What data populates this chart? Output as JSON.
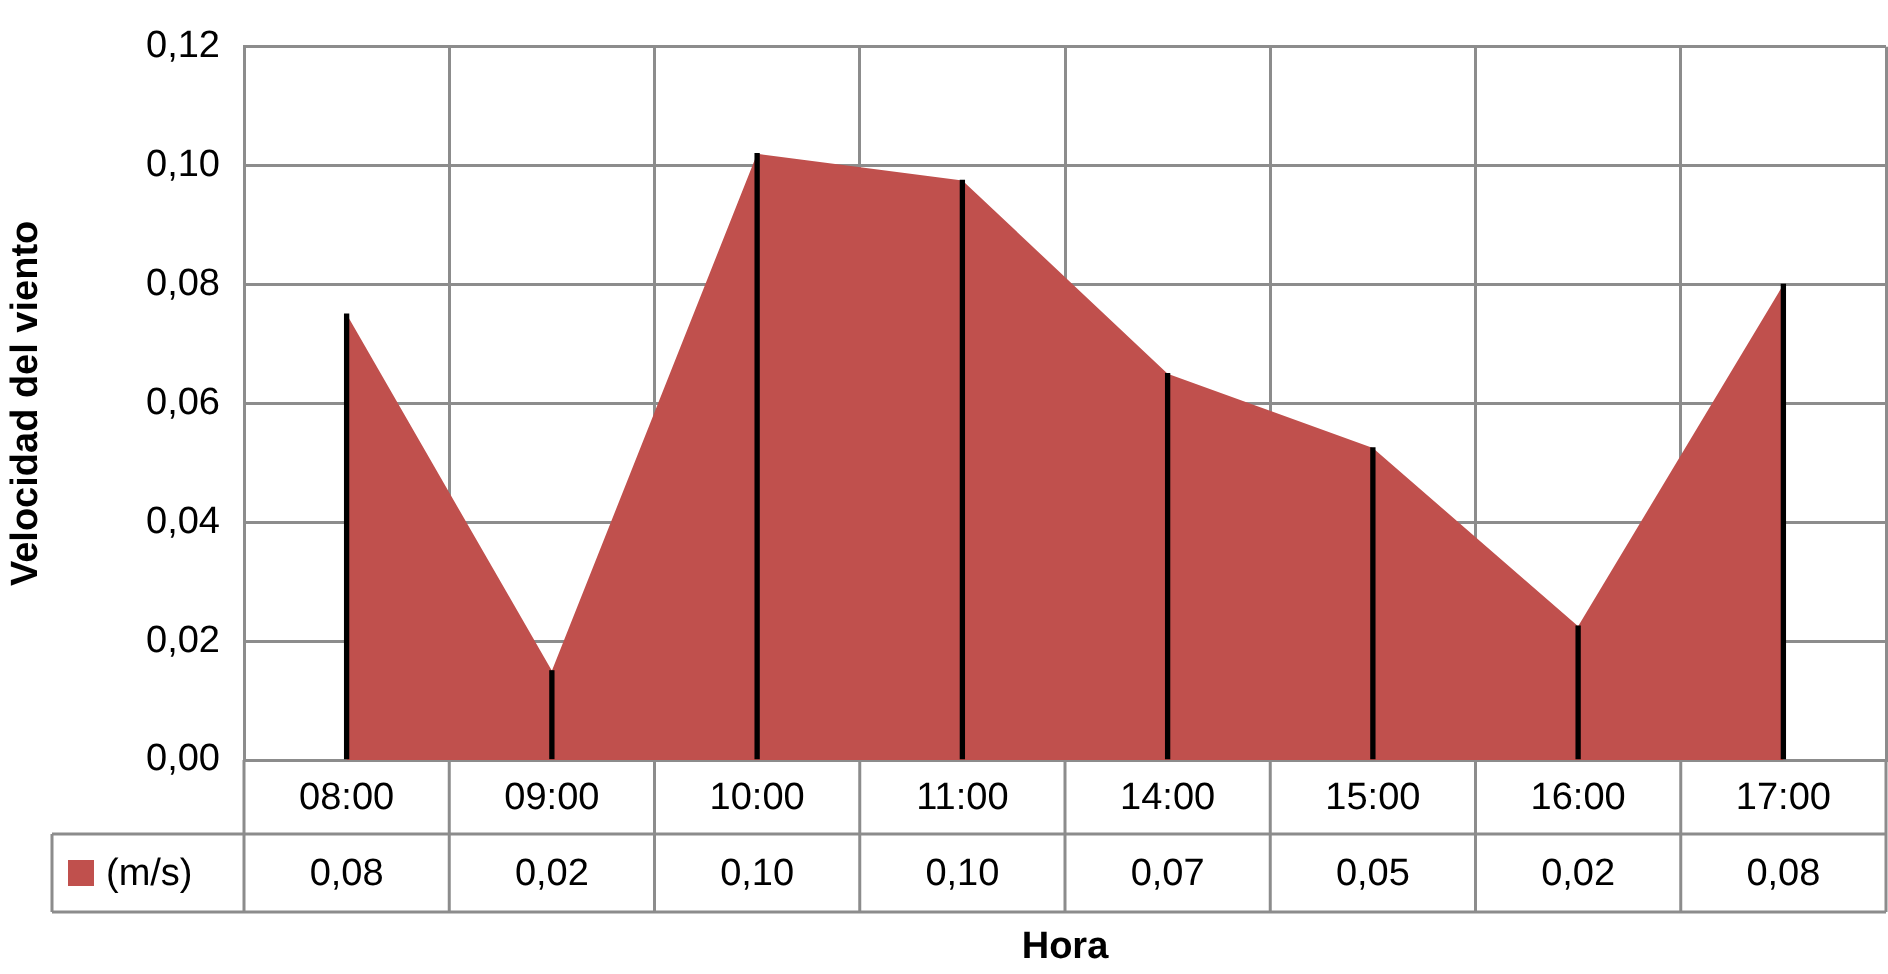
{
  "chart_data": {
    "type": "area",
    "xlabel": "Hora",
    "ylabel": "Velocidad del viento",
    "categories": [
      "08:00",
      "09:00",
      "10:00",
      "11:00",
      "14:00",
      "15:00",
      "16:00",
      "17:00"
    ],
    "series": [
      {
        "name": "(m/s)",
        "color": "#c0504d",
        "values": [
          0.075,
          0.015,
          0.102,
          0.0975,
          0.065,
          0.0525,
          0.0225,
          0.08
        ],
        "value_labels": [
          "0,08",
          "0,02",
          "0,10",
          "0,10",
          "0,07",
          "0,05",
          "0,02",
          "0,08"
        ]
      },
      {
        "type": "bar",
        "color": "#000000",
        "values": [
          0.075,
          0.015,
          0.102,
          0.0975,
          0.065,
          0.0525,
          0.0225,
          0.08
        ]
      }
    ],
    "ylim": [
      0,
      0.12
    ],
    "yticks": [
      {
        "value": 0,
        "label": "0,00"
      },
      {
        "value": 0.02,
        "label": "0,02"
      },
      {
        "value": 0.04,
        "label": "0,04"
      },
      {
        "value": 0.06,
        "label": "0,06"
      },
      {
        "value": 0.08,
        "label": "0,08"
      },
      {
        "value": 0.1,
        "label": "0,10"
      },
      {
        "value": 0.12,
        "label": "0,12"
      }
    ],
    "grid": true
  }
}
